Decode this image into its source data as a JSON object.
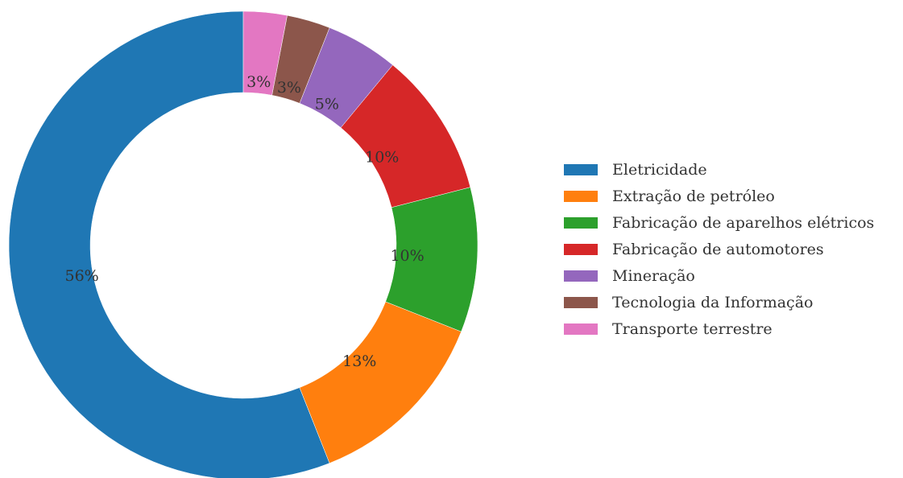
{
  "chart_data": {
    "type": "pie",
    "donut": true,
    "title": "",
    "categories": [
      "Eletricidade",
      "Extração de petróleo",
      "Fabricação de aparelhos elétricos",
      "Fabricação de automotores",
      "Mineração",
      "Tecnologia da Informação",
      "Transporte terrestre"
    ],
    "values": [
      56,
      13,
      10,
      10,
      5,
      3,
      3
    ],
    "labels": [
      "56%",
      "13%",
      "10%",
      "10%",
      "5%",
      "3%",
      "3%"
    ],
    "colors": [
      "#1f77b4",
      "#ff7f0e",
      "#2ca02c",
      "#d62728",
      "#9467bd",
      "#8c564b",
      "#e377c2"
    ],
    "start": "top",
    "direction": "counterclockwise",
    "legend_position": "right"
  }
}
